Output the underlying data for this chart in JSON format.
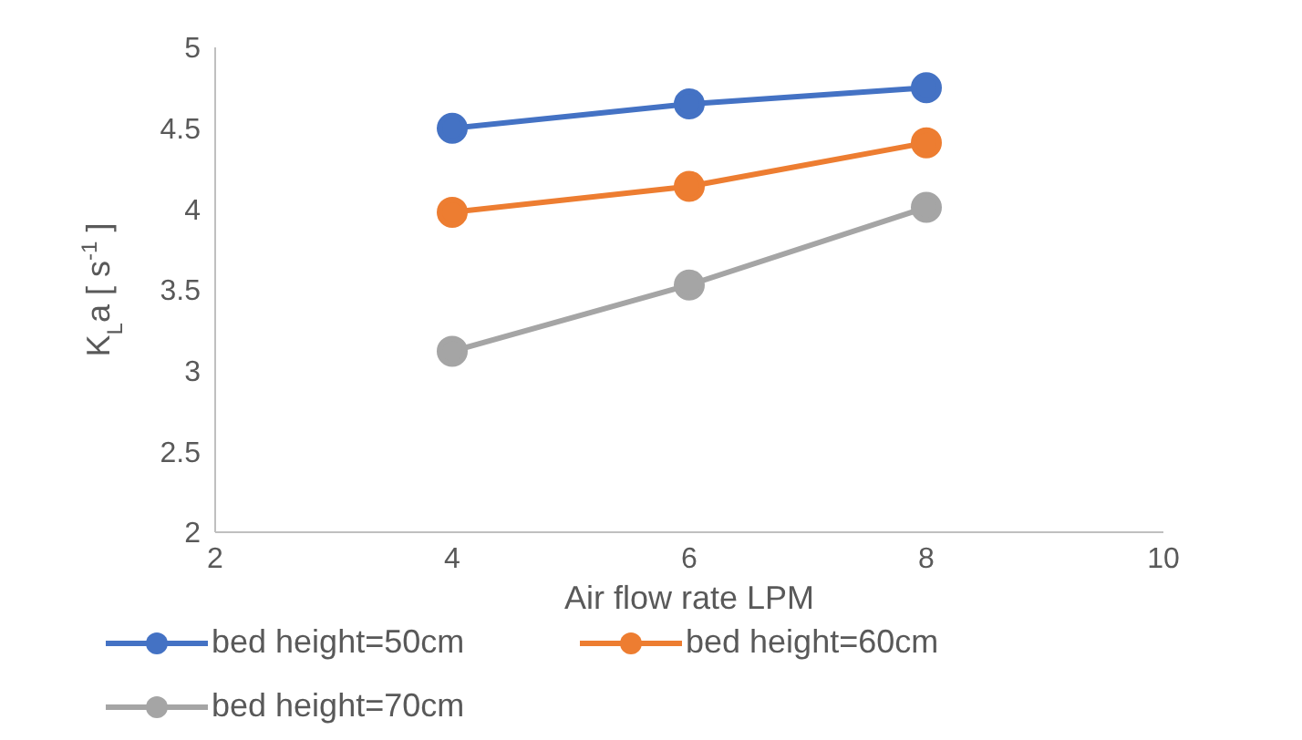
{
  "chart_data": {
    "type": "line",
    "xlabel": "Air flow rate LPM",
    "ylabel": "K$_{L}$a [ s$^{-1}$ ]",
    "x": [
      4,
      6,
      8
    ],
    "xlim": [
      2,
      10
    ],
    "xticks": [
      2,
      4,
      6,
      8,
      10
    ],
    "ylim": [
      2,
      5
    ],
    "yticks": [
      2,
      2.5,
      3,
      3.5,
      4,
      4.5,
      5
    ],
    "grid": false,
    "legend": "bottom",
    "marker": "circle",
    "line_style": "solid",
    "series": [
      {
        "name": "bed height=50cm",
        "color": "#4472c4",
        "values": [
          4.5,
          4.65,
          4.75
        ]
      },
      {
        "name": "bed height=60cm",
        "color": "#ed7d31",
        "values": [
          3.98,
          4.14,
          4.41
        ]
      },
      {
        "name": "bed height=70cm",
        "color": "#a5a5a5",
        "values": [
          3.12,
          3.53,
          4.01
        ]
      }
    ]
  }
}
